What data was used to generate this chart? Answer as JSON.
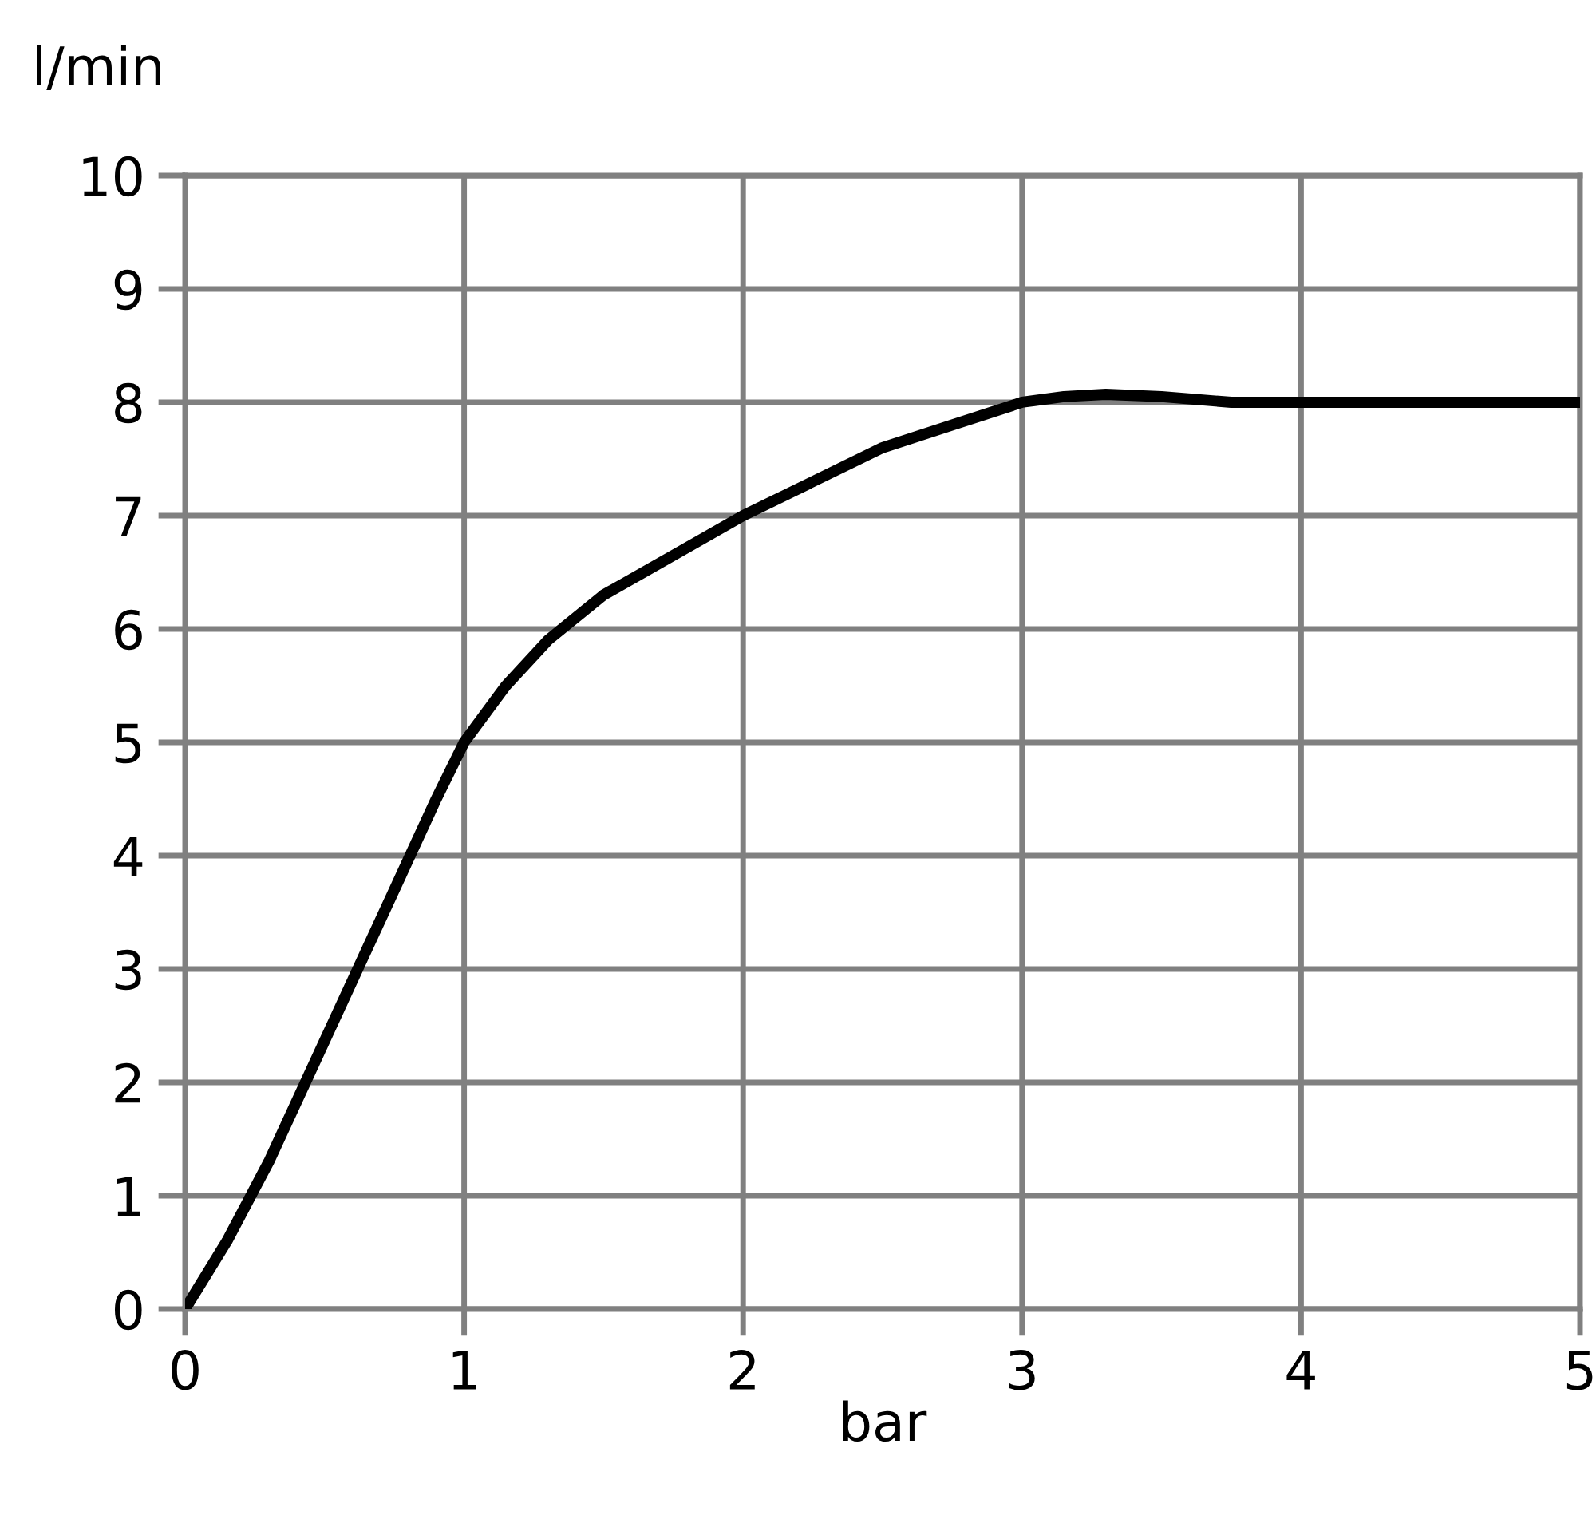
{
  "chart_data": {
    "type": "line",
    "xlabel": "bar",
    "ylabel": "l/min",
    "x": [
      0,
      0.15,
      0.3,
      0.45,
      0.6,
      0.75,
      0.9,
      1,
      1.15,
      1.3,
      1.5,
      1.75,
      2,
      2.25,
      2.5,
      2.75,
      3,
      3.15,
      3.3,
      3.5,
      3.75,
      4,
      4.5,
      5
    ],
    "series": [
      {
        "color": "#000000",
        "values": [
          0,
          0.6,
          1.3,
          2.1,
          2.9,
          3.7,
          4.5,
          5,
          5.5,
          5.9,
          6.3,
          6.65,
          7,
          7.3,
          7.6,
          7.8,
          8,
          8.05,
          8.07,
          8.05,
          8,
          8,
          8,
          8
        ]
      }
    ],
    "xlim": [
      0,
      5
    ],
    "xticks": [
      0,
      1,
      2,
      3,
      4,
      5
    ],
    "ylim": [
      0,
      10
    ],
    "yticks": [
      0,
      1,
      2,
      3,
      4,
      5,
      6,
      7,
      8,
      9,
      10
    ],
    "grid": true,
    "marker": "none",
    "line_style": "solid",
    "legend": false
  }
}
